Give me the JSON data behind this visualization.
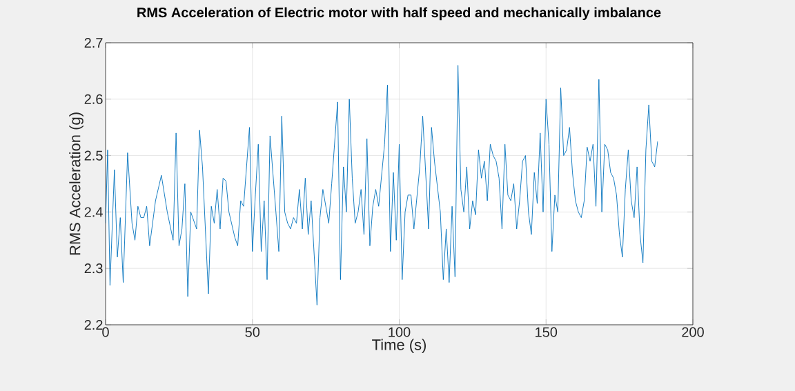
{
  "chart_data": {
    "type": "line",
    "title": "RMS Acceleration of Electric motor with half speed and mechanically imbalance",
    "xlabel": "Time (s)",
    "ylabel": "RMS Acceleration (g)",
    "xlim": [
      0,
      200
    ],
    "ylim": [
      2.2,
      2.7
    ],
    "xticks": [
      0,
      50,
      100,
      150,
      200
    ],
    "yticks": [
      2.2,
      2.3,
      2.4,
      2.5,
      2.6,
      2.7
    ],
    "grid": true,
    "series": [
      {
        "color": "#0072bd",
        "x": [
          0,
          0.7,
          1.5,
          3,
          4,
          5,
          6,
          7.5,
          9,
          10,
          11,
          12,
          13,
          14,
          15,
          17,
          19,
          21,
          23,
          24,
          25,
          26,
          27,
          28,
          29,
          31,
          32,
          33,
          35,
          36,
          37,
          38,
          39,
          40,
          41,
          42,
          44,
          45,
          46,
          47,
          49,
          50,
          51,
          52,
          53,
          54,
          55,
          56,
          58,
          59,
          60,
          61,
          62,
          63,
          64,
          65,
          66,
          67,
          68,
          69,
          70,
          72,
          73,
          74,
          76,
          77,
          79,
          80,
          81,
          82,
          83,
          84,
          85,
          86,
          87,
          88,
          89,
          90,
          91,
          92,
          93,
          95,
          96,
          97,
          98,
          99,
          100,
          101,
          102,
          103,
          104,
          105,
          107,
          108,
          110,
          111,
          112,
          114,
          115,
          116,
          117,
          118,
          119,
          120,
          121,
          122,
          123,
          124,
          125,
          126,
          127,
          128,
          129,
          130,
          131,
          132,
          133,
          134,
          135,
          136,
          137,
          138,
          139,
          140,
          141,
          142,
          143,
          144,
          145,
          146,
          147,
          148,
          149,
          150,
          151,
          152,
          153,
          154,
          155,
          156,
          157,
          158,
          159,
          160,
          161,
          162,
          163,
          164,
          165,
          166,
          167,
          168,
          169,
          170,
          171,
          172,
          173,
          174,
          175,
          176,
          177,
          178,
          179,
          180,
          181,
          182,
          183,
          184,
          185,
          186,
          187,
          188
        ],
        "values": [
          2.38,
          2.51,
          2.27,
          2.475,
          2.32,
          2.39,
          2.275,
          2.505,
          2.38,
          2.35,
          2.41,
          2.39,
          2.39,
          2.41,
          2.34,
          2.42,
          2.465,
          2.4,
          2.35,
          2.54,
          2.34,
          2.37,
          2.45,
          2.25,
          2.4,
          2.37,
          2.545,
          2.48,
          2.255,
          2.41,
          2.38,
          2.44,
          2.37,
          2.46,
          2.455,
          2.4,
          2.355,
          2.34,
          2.42,
          2.41,
          2.55,
          2.33,
          2.43,
          2.52,
          2.33,
          2.42,
          2.28,
          2.535,
          2.4,
          2.33,
          2.57,
          2.4,
          2.38,
          2.37,
          2.39,
          2.38,
          2.44,
          2.37,
          2.46,
          2.36,
          2.42,
          2.235,
          2.39,
          2.44,
          2.38,
          2.45,
          2.595,
          2.28,
          2.48,
          2.4,
          2.6,
          2.46,
          2.38,
          2.4,
          2.44,
          2.36,
          2.53,
          2.34,
          2.41,
          2.44,
          2.41,
          2.52,
          2.625,
          2.33,
          2.47,
          2.35,
          2.52,
          2.28,
          2.4,
          2.43,
          2.43,
          2.37,
          2.48,
          2.57,
          2.37,
          2.55,
          2.49,
          2.4,
          2.28,
          2.37,
          2.275,
          2.41,
          2.285,
          2.66,
          2.44,
          2.4,
          2.48,
          2.37,
          2.42,
          2.395,
          2.51,
          2.46,
          2.49,
          2.42,
          2.52,
          2.5,
          2.49,
          2.46,
          2.37,
          2.52,
          2.43,
          2.42,
          2.45,
          2.37,
          2.42,
          2.49,
          2.5,
          2.4,
          2.36,
          2.47,
          2.415,
          2.54,
          2.4,
          2.6,
          2.52,
          2.33,
          2.43,
          2.4,
          2.62,
          2.5,
          2.51,
          2.55,
          2.47,
          2.42,
          2.4,
          2.39,
          2.42,
          2.515,
          2.49,
          2.52,
          2.41,
          2.635,
          2.4,
          2.52,
          2.51,
          2.47,
          2.46,
          2.43,
          2.36,
          2.32,
          2.44,
          2.51,
          2.42,
          2.39,
          2.48,
          2.36,
          2.31,
          2.51,
          2.59,
          2.49,
          2.48,
          2.525
        ]
      }
    ]
  }
}
